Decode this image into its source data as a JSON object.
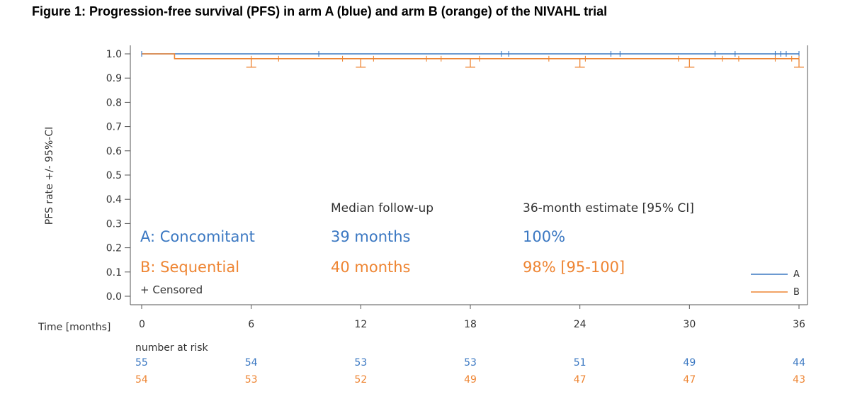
{
  "title": "Figure 1: Progression-free survival (PFS) in arm A (blue) and arm B (orange) of the NIVAHL trial",
  "colors": {
    "arm_a": "#3b78c2",
    "arm_b": "#ee8533",
    "axis": "#555555",
    "text": "#333333"
  },
  "chart_data": {
    "type": "line",
    "subtype": "kaplan-meier",
    "ylabel": "PFS rate +/- 95%-CI",
    "xlabel": "Time [months]",
    "xlim": [
      0,
      36
    ],
    "ylim": [
      0,
      1
    ],
    "x_ticks": [
      0,
      6,
      12,
      18,
      24,
      30,
      36
    ],
    "y_ticks": [
      "0.0",
      "0.1",
      "0.2",
      "0.3",
      "0.4",
      "0.5",
      "0.6",
      "0.7",
      "0.8",
      "0.9",
      "1.0"
    ],
    "grid": false,
    "series": [
      {
        "key": "A",
        "step_x": [
          0,
          36
        ],
        "step_y": [
          1.0,
          1.0
        ],
        "censor_x": [
          0,
          9.7,
          19.7,
          20.1,
          25.7,
          26.2,
          31.4,
          32.5,
          34.7,
          35.0,
          35.3,
          36
        ]
      },
      {
        "key": "B",
        "step_x": [
          0,
          1.8,
          36
        ],
        "step_y": [
          1.0,
          0.98,
          0.98
        ],
        "ci_lower": 0.945,
        "ci_x": [
          6,
          12,
          18,
          24,
          30,
          36
        ],
        "censor_x": [
          6,
          7.5,
          11,
          12.7,
          15.6,
          16.4,
          18.5,
          22.3,
          24.3,
          29.4,
          31.8,
          32.7,
          34.7,
          35.6,
          36
        ]
      }
    ],
    "legend": {
      "position": "bottom-right",
      "entries": [
        "A",
        "B"
      ]
    },
    "annotations": {
      "col_followup_header": "Median follow-up",
      "col_estimate_header": "36-month estimate [95% CI]",
      "arm_a_label": "A: Concomitant",
      "arm_b_label": "B: Sequential",
      "arm_a_followup": "39 months",
      "arm_b_followup": "40 months",
      "arm_a_estimate": "100%",
      "arm_b_estimate": "98% [95-100]",
      "censored_note": "+ Censored"
    },
    "risk_table": {
      "header": "number at risk",
      "arm_a": [
        55,
        54,
        53,
        53,
        51,
        49,
        44
      ],
      "arm_b": [
        54,
        53,
        52,
        49,
        47,
        47,
        43
      ]
    }
  }
}
